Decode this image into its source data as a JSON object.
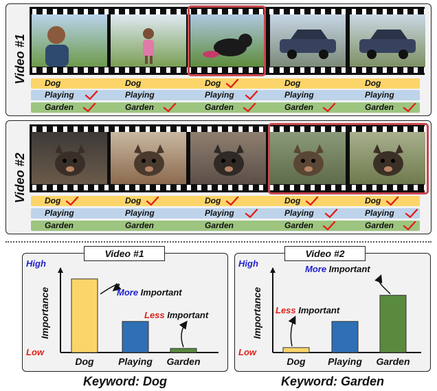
{
  "colors": {
    "dog": "#fbd56a",
    "playing": "#bdd3ea",
    "garden": "#9dc57f",
    "check": "#e0201a",
    "highlight": "#c9464b",
    "bar_dog": "#fbd56a",
    "bar_playing": "#2f6fb5",
    "bar_garden": "#5a8a3e",
    "more": "#1f1fd0",
    "less": "#e0201a"
  },
  "videos": [
    {
      "label": "Video #1",
      "rows": [
        {
          "key": "dog",
          "labels": [
            "Dog",
            "Dog",
            "Dog",
            "Dog",
            "Dog"
          ],
          "checks": [
            false,
            false,
            true,
            false,
            false
          ]
        },
        {
          "key": "playing",
          "labels": [
            "Playing",
            "Playing",
            "Playing",
            "Playing",
            "Playing"
          ],
          "checks": [
            true,
            false,
            true,
            false,
            false
          ]
        },
        {
          "key": "garden",
          "labels": [
            "Garden",
            "Garden",
            "Garden",
            "Garden",
            "Garden"
          ],
          "checks": [
            true,
            true,
            true,
            true,
            true
          ]
        }
      ]
    },
    {
      "label": "Video #2",
      "rows": [
        {
          "key": "dog",
          "labels": [
            "Dog",
            "Dog",
            "Dog",
            "Dog",
            "Dog"
          ],
          "checks": [
            true,
            true,
            true,
            true,
            true
          ]
        },
        {
          "key": "playing",
          "labels": [
            "Playing",
            "Playing",
            "Playing",
            "Playing",
            "Playing"
          ],
          "checks": [
            false,
            false,
            true,
            true,
            true
          ]
        },
        {
          "key": "garden",
          "labels": [
            "Garden",
            "Garden",
            "Garden",
            "Garden",
            "Garden"
          ],
          "checks": [
            false,
            false,
            false,
            true,
            true
          ]
        }
      ]
    }
  ],
  "frame_icons": [
    [
      "person-icon",
      "child-icon",
      "dog-icon",
      "car-icon",
      "car-icon"
    ],
    [
      "puppy-icon",
      "puppy-icon",
      "puppy-icon",
      "puppy-icon",
      "puppy-icon"
    ]
  ],
  "chart_data": [
    {
      "type": "bar",
      "title": "Video #1",
      "categories": [
        "Dog",
        "Playing",
        "Garden"
      ],
      "values": [
        0.9,
        0.38,
        0.05
      ],
      "ylabel": "Importance",
      "ymax_label": "High",
      "ymin_label": "Low",
      "annotations": [
        {
          "target": "Dog",
          "prefix": "More",
          "rest": " Important",
          "prefix_color": "#1f1fd0"
        },
        {
          "target": "Garden",
          "prefix": "Less",
          "rest": " Important",
          "prefix_color": "#e0201a"
        }
      ],
      "caption": "Keyword: Dog"
    },
    {
      "type": "bar",
      "title": "Video #2",
      "categories": [
        "Dog",
        "Playing",
        "Garden"
      ],
      "values": [
        0.06,
        0.38,
        0.7
      ],
      "ylabel": "Importance",
      "ymax_label": "High",
      "ymin_label": "Low",
      "annotations": [
        {
          "target": "Garden",
          "prefix": "More",
          "rest": " Important",
          "prefix_color": "#1f1fd0"
        },
        {
          "target": "Dog",
          "prefix": "Less",
          "rest": " Important",
          "prefix_color": "#e0201a"
        }
      ],
      "caption": "Keyword: Garden"
    }
  ]
}
